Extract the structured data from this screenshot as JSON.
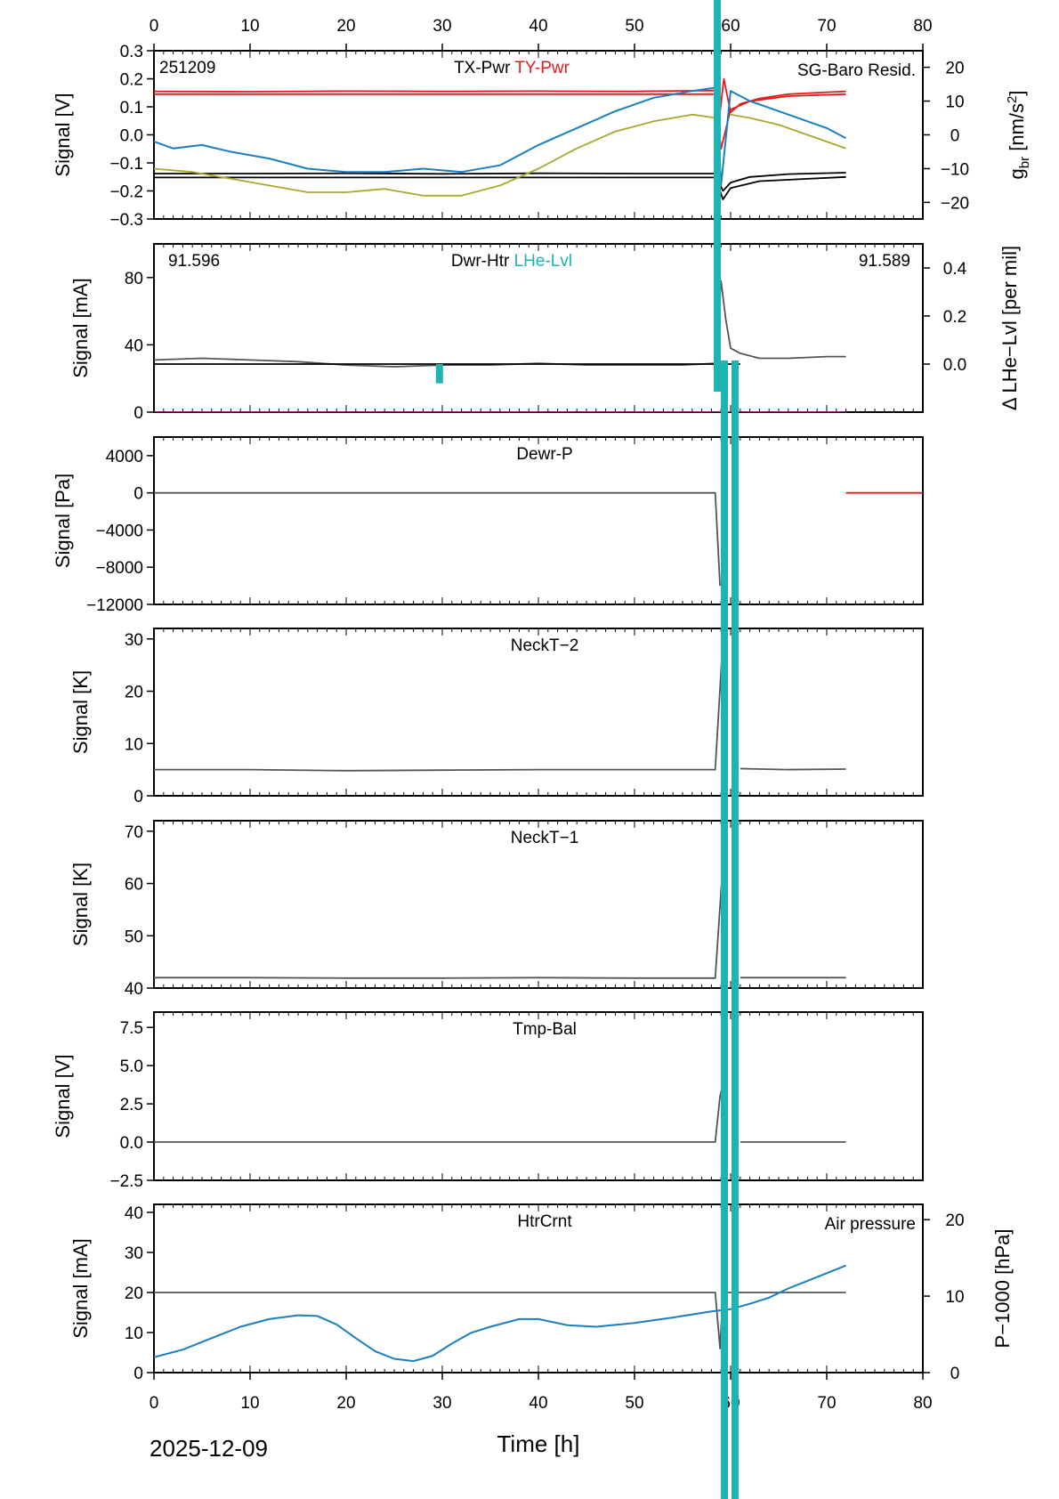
{
  "date_label": "2025-12-09",
  "xlabel": "Time [h]",
  "colors": {
    "black": "#000000",
    "gray": "#555555",
    "red": "#e41a1c",
    "blue": "#1a7fbf",
    "olive": "#a8a82a",
    "teal": "#1fb3b3",
    "magenta": "#a020a0"
  },
  "chart_data": [
    {
      "type": "line",
      "id": "p1",
      "title": "TX-Pwr",
      "title2": "TY-Pwr",
      "corner_label": "251209",
      "right_label": "SG-Baro Resid.",
      "ylabel": "Signal [V]",
      "y2label": "g",
      "y2label_sub": "br",
      "y2label_unit": "[nm/s",
      "y2label_sup": "2",
      "y2label_end": "]",
      "xlim": [
        0,
        80
      ],
      "ylim": [
        -0.3,
        0.3
      ],
      "yticks": [
        -0.3,
        -0.2,
        -0.1,
        0.0,
        0.1,
        0.2,
        0.3
      ],
      "ytick_labels": [
        "−0.3",
        "−0.2",
        "−0.1",
        "0.0",
        "0.1",
        "0.2",
        "0.3"
      ],
      "y2lim": [
        -24.9,
        24.9
      ],
      "y2ticks": [
        -20,
        -10,
        0,
        10,
        20
      ],
      "y2tick_labels": [
        "−20",
        "−10",
        "0",
        "10",
        "20"
      ],
      "series": [
        {
          "name": "TY-Pwr",
          "color": "red",
          "axis": "y",
          "x": [
            0,
            10,
            20,
            30,
            40,
            50,
            58.4,
            58.8,
            59.3,
            60,
            61,
            63,
            66,
            70,
            72
          ],
          "y": [
            0.155,
            0.154,
            0.156,
            0.155,
            0.156,
            0.155,
            0.158,
            0.05,
            0.2,
            0.08,
            0.11,
            0.13,
            0.145,
            0.152,
            0.155
          ]
        },
        {
          "name": "TY-Pwr lower",
          "color": "red",
          "axis": "y",
          "x": [
            0,
            20,
            40,
            58.4,
            59,
            60,
            62,
            66,
            72
          ],
          "y": [
            0.145,
            0.145,
            0.145,
            0.145,
            -0.05,
            0.09,
            0.12,
            0.138,
            0.145
          ]
        },
        {
          "name": "TX-Pwr",
          "color": "black",
          "axis": "y",
          "x": [
            0,
            10,
            20,
            30,
            40,
            50,
            58.4,
            59.2,
            60,
            62,
            66,
            72
          ],
          "y": [
            -0.138,
            -0.138,
            -0.137,
            -0.139,
            -0.137,
            -0.138,
            -0.138,
            -0.2,
            -0.17,
            -0.15,
            -0.14,
            -0.135
          ]
        },
        {
          "name": "TX-Pwr lower",
          "color": "black",
          "axis": "y",
          "x": [
            0,
            20,
            40,
            58.4,
            59.2,
            60,
            63,
            72
          ],
          "y": [
            -0.152,
            -0.152,
            -0.152,
            -0.152,
            -0.23,
            -0.19,
            -0.165,
            -0.15
          ]
        },
        {
          "name": "SG-Baro Resid.",
          "color": "blue",
          "axis": "y2",
          "x": [
            0,
            2,
            5,
            8,
            12,
            16,
            20,
            24,
            28,
            32,
            36,
            40,
            44,
            48,
            52,
            56,
            58.5,
            59,
            60,
            62,
            64,
            66,
            68,
            70,
            72
          ],
          "y": [
            -2,
            -4,
            -3,
            -5,
            -7,
            -10,
            -11,
            -11,
            -10,
            -11,
            -9,
            -3,
            2,
            7,
            11,
            13,
            14,
            -15,
            13,
            10,
            8,
            6,
            4,
            2,
            -1
          ]
        },
        {
          "name": "Olive",
          "color": "olive",
          "axis": "y2",
          "x": [
            0,
            4,
            8,
            12,
            16,
            20,
            24,
            28,
            32,
            36,
            40,
            44,
            48,
            52,
            56,
            58.5
          ],
          "y": [
            -10,
            -11,
            -13,
            -15,
            -17,
            -17,
            -16,
            -18,
            -18,
            -15,
            -10,
            -4,
            1,
            4,
            6,
            5
          ]
        },
        {
          "name": "Olive after",
          "color": "olive",
          "axis": "y2",
          "x": [
            60,
            62,
            65,
            68,
            70,
            72
          ],
          "y": [
            6,
            5,
            3,
            0,
            -2,
            -4
          ]
        }
      ]
    },
    {
      "type": "line",
      "id": "p2",
      "title": "Dwr-Htr",
      "title2": "LHe-Lvl",
      "left_value": "91.596",
      "right_value": "91.589",
      "ylabel": "Signal [mA]",
      "y2label": "Δ LHe−Lvl [per mil]",
      "xlim": [
        0,
        80
      ],
      "ylim": [
        0,
        100
      ],
      "yticks": [
        0,
        40,
        80
      ],
      "ytick_labels": [
        "0",
        "40",
        "80"
      ],
      "y2lim": [
        -0.2,
        0.5
      ],
      "y2ticks": [
        0.0,
        0.2,
        0.4
      ],
      "y2tick_labels": [
        "0.0",
        "0.2",
        "0.4"
      ],
      "series": [
        {
          "name": "Dwr-Htr",
          "color": "gray",
          "axis": "y",
          "x": [
            0,
            5,
            10,
            15,
            20,
            25,
            30,
            35,
            40,
            45,
            50,
            55,
            58.4,
            59,
            59.5,
            60,
            61,
            63,
            66,
            70,
            72
          ],
          "y": [
            31,
            32,
            31,
            30,
            28,
            27,
            28,
            28,
            29,
            28,
            28,
            28,
            29,
            78,
            55,
            38,
            35,
            32,
            32,
            33,
            33
          ]
        },
        {
          "name": "LHe-Lvl",
          "color": "black",
          "axis": "y2",
          "x": [
            0,
            61
          ],
          "y": [
            0.0,
            0.0
          ]
        },
        {
          "name": "LHe-Lvl spike",
          "color": "teal",
          "axis": "y2",
          "x": [
            29.7,
            29.7
          ],
          "y": [
            0.0,
            -0.08
          ]
        },
        {
          "name": "baseline",
          "color": "magenta",
          "axis": "y",
          "x": [
            0,
            72
          ],
          "y": [
            0,
            0
          ]
        }
      ]
    },
    {
      "type": "line",
      "id": "p3",
      "title": "Dewr-P",
      "ylabel": "Signal [Pa]",
      "xlim": [
        0,
        80
      ],
      "ylim": [
        -12000,
        6000
      ],
      "yticks": [
        -12000,
        -8000,
        -4000,
        0,
        4000
      ],
      "ytick_labels": [
        "−12000",
        "−8000",
        "−4000",
        "0",
        "4000"
      ],
      "series": [
        {
          "name": "Dewr-P",
          "color": "gray",
          "axis": "y",
          "x": [
            0,
            20,
            40,
            58.4,
            58.9
          ],
          "y": [
            0,
            0,
            0,
            0,
            -10000
          ]
        },
        {
          "name": "Dewr-P after",
          "color": "red",
          "axis": "y",
          "x": [
            72,
            80
          ],
          "y": [
            0,
            0
          ]
        }
      ]
    },
    {
      "type": "line",
      "id": "p4",
      "title": "NeckT−2",
      "ylabel": "Signal [K]",
      "xlim": [
        0,
        80
      ],
      "ylim": [
        0,
        32
      ],
      "yticks": [
        0,
        10,
        20,
        30
      ],
      "ytick_labels": [
        "0",
        "10",
        "20",
        "30"
      ],
      "series": [
        {
          "name": "NeckT-2",
          "color": "gray",
          "axis": "y",
          "x": [
            0,
            10,
            20,
            30,
            40,
            50,
            58.4,
            59.2
          ],
          "y": [
            5,
            5,
            4.8,
            4.9,
            5,
            5,
            5,
            30
          ]
        },
        {
          "name": "NeckT-2 after",
          "color": "gray",
          "axis": "y",
          "x": [
            61,
            66,
            72
          ],
          "y": [
            5.2,
            5,
            5.1
          ]
        }
      ]
    },
    {
      "type": "line",
      "id": "p5",
      "title": "NeckT−1",
      "ylabel": "Signal [K]",
      "xlim": [
        0,
        80
      ],
      "ylim": [
        40,
        72
      ],
      "yticks": [
        40,
        50,
        60,
        70
      ],
      "ytick_labels": [
        "40",
        "50",
        "60",
        "70"
      ],
      "series": [
        {
          "name": "NeckT-1",
          "color": "gray",
          "axis": "y",
          "x": [
            0,
            10,
            20,
            30,
            40,
            50,
            58.4,
            59.2
          ],
          "y": [
            42,
            42,
            41.9,
            41.9,
            42,
            41.9,
            41.9,
            64
          ]
        },
        {
          "name": "NeckT-1 after",
          "color": "gray",
          "axis": "y",
          "x": [
            61,
            66,
            72
          ],
          "y": [
            42,
            42,
            42
          ]
        }
      ]
    },
    {
      "type": "line",
      "id": "p6",
      "title": "Tmp-Bal",
      "ylabel": "Signal [V]",
      "xlim": [
        0,
        80
      ],
      "ylim": [
        -2.5,
        8.5
      ],
      "yticks": [
        -2.5,
        0.0,
        2.5,
        5.0,
        7.5
      ],
      "ytick_labels": [
        "−2.5",
        "0.0",
        "2.5",
        "5.0",
        "7.5"
      ],
      "series": [
        {
          "name": "Tmp-Bal",
          "color": "gray",
          "axis": "y",
          "x": [
            0,
            20,
            40,
            58.4,
            58.9,
            59.3
          ],
          "y": [
            0,
            0,
            0,
            0,
            3,
            4
          ]
        },
        {
          "name": "Tmp-Bal after",
          "color": "gray",
          "axis": "y",
          "x": [
            61,
            72
          ],
          "y": [
            0,
            0
          ]
        }
      ]
    },
    {
      "type": "line",
      "id": "p7",
      "title": "HtrCrnt",
      "right_label": "Air pressure",
      "ylabel": "Signal [mA]",
      "y2label": "P−1000 [hPa]",
      "xlim": [
        0,
        80
      ],
      "ylim": [
        0,
        42
      ],
      "yticks": [
        0,
        10,
        20,
        30,
        40
      ],
      "ytick_labels": [
        "0",
        "10",
        "20",
        "30",
        "40"
      ],
      "y2lim": [
        0,
        22
      ],
      "y2ticks": [
        0,
        10,
        20
      ],
      "y2tick_labels": [
        "0",
        "10",
        "20"
      ],
      "series": [
        {
          "name": "HtrCrnt",
          "color": "gray",
          "axis": "y",
          "x": [
            0,
            10,
            20,
            30,
            40,
            50,
            58.4,
            58.9,
            59.2,
            60,
            72
          ],
          "y": [
            20,
            20,
            20,
            20,
            20,
            20,
            20,
            6,
            20,
            20,
            20
          ]
        },
        {
          "name": "Air pressure",
          "color": "blue",
          "axis": "y2",
          "x": [
            0,
            3,
            6,
            9,
            12,
            15,
            17,
            19,
            21,
            23,
            25,
            27,
            29,
            31,
            33,
            35,
            38,
            40,
            43,
            46,
            50,
            54,
            58,
            60,
            62,
            64,
            66,
            68,
            70,
            72
          ],
          "y": [
            2,
            3,
            4.5,
            6,
            7,
            7.5,
            7.4,
            6.3,
            4.5,
            2.8,
            1.8,
            1.5,
            2.2,
            3.8,
            5.2,
            6,
            7,
            7,
            6.2,
            6,
            6.5,
            7.2,
            8,
            8.3,
            9,
            9.8,
            11,
            12,
            13,
            14
          ]
        }
      ]
    }
  ]
}
